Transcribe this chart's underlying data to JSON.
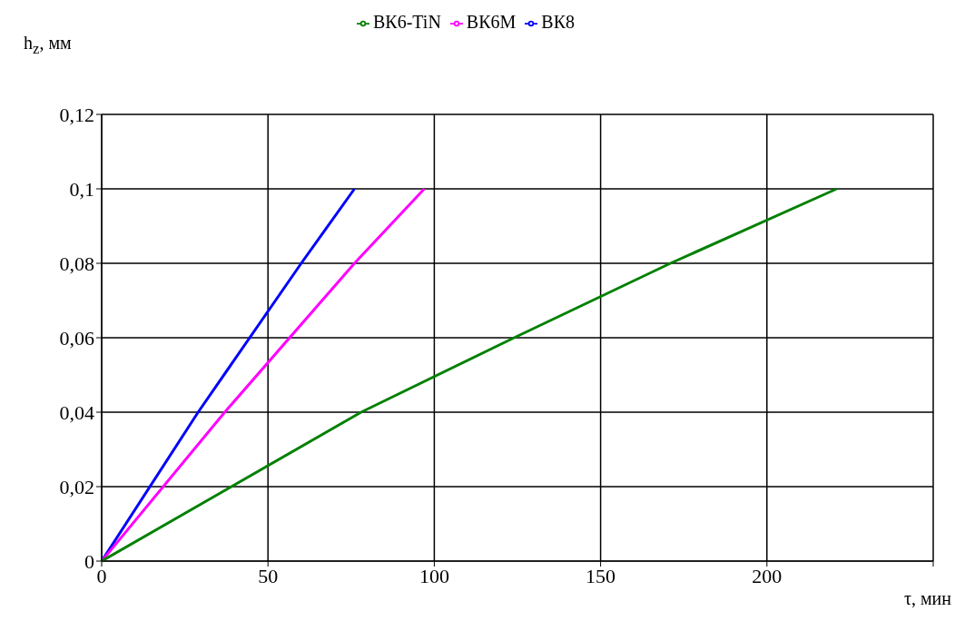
{
  "chart_data": {
    "type": "line",
    "xlabel": "τ, мин",
    "ylabel": "h$_{z}$, мм",
    "xlim": [
      0,
      250
    ],
    "xticks": [
      0,
      50,
      100,
      150,
      200,
      {
        "value": 250,
        "label": null
      }
    ],
    "ylim": [
      0,
      0.12
    ],
    "yticks": [
      {
        "value": 0,
        "label": "0"
      },
      {
        "value": 0.02,
        "label": "0,02"
      },
      {
        "value": 0.04,
        "label": "0,04"
      },
      {
        "value": 0.06,
        "label": "0,06"
      },
      {
        "value": 0.08,
        "label": "0,08"
      },
      {
        "value": 0.1,
        "label": "0,1"
      },
      {
        "value": 0.12,
        "label": "0,12"
      }
    ],
    "grid": true,
    "legend": "top",
    "marker": "none",
    "line_style": "solid",
    "series": [
      {
        "name": "ВК8",
        "color": "#0000ff",
        "x": [
          0,
          29,
          60,
          76
        ],
        "values": [
          0,
          0.04,
          0.08,
          0.1
        ]
      },
      {
        "name": "ВК6М",
        "color": "#ff00ff",
        "x": [
          0,
          37,
          76,
          97
        ],
        "values": [
          0,
          0.04,
          0.08,
          0.1
        ]
      },
      {
        "name": "ВК6-TiN",
        "color": "#008000",
        "x": [
          0,
          39,
          78,
          124,
          171,
          221
        ],
        "values": [
          0,
          0.02,
          0.04,
          0.06,
          0.08,
          0.1
        ]
      }
    ]
  }
}
